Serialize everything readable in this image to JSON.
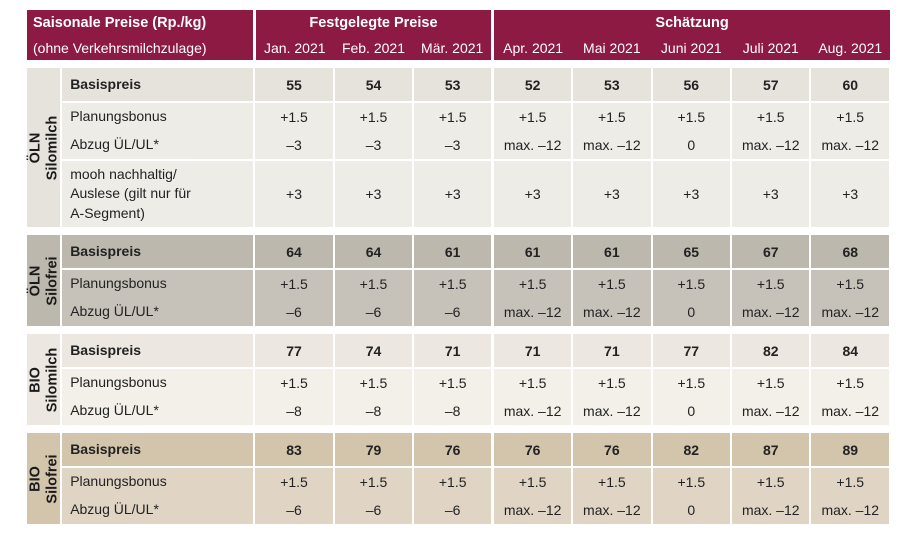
{
  "header": {
    "title": "Saisonale Preise (Rp./kg)",
    "subtitle": "(ohne Verkehrsmilchzulage)",
    "fixed_label": "Festgelegte Preise",
    "estimate_label": "Schätzung",
    "months": [
      "Jan. 2021",
      "Feb. 2021",
      "Mär. 2021",
      "Apr. 2021",
      "Mai 2021",
      "Juni 2021",
      "Juli 2021",
      "Aug. 2021"
    ]
  },
  "sections": [
    {
      "group": [
        "ÖLN",
        "Silomilch"
      ],
      "rows": [
        {
          "label": "Basispreis",
          "values": [
            "55",
            "54",
            "53",
            "52",
            "53",
            "56",
            "57",
            "60"
          ]
        },
        {
          "label": "Planungsbonus",
          "values": [
            "+1.5",
            "+1.5",
            "+1.5",
            "+1.5",
            "+1.5",
            "+1.5",
            "+1.5",
            "+1.5"
          ]
        },
        {
          "label": "Abzug ÜL/UL*",
          "values": [
            "–3",
            "–3",
            "–3",
            "max. –12",
            "max. –12",
            "0",
            "max. –12",
            "max. –12"
          ]
        },
        {
          "label_lines": [
            "mooh nachhaltig/",
            "Auslese (gilt nur für",
            "A-Segment)"
          ],
          "values": [
            "+3",
            "+3",
            "+3",
            "+3",
            "+3",
            "+3",
            "+3",
            "+3"
          ]
        }
      ]
    },
    {
      "group": [
        "ÖLN",
        "Silofrei"
      ],
      "rows": [
        {
          "label": "Basispreis",
          "values": [
            "64",
            "64",
            "61",
            "61",
            "61",
            "65",
            "67",
            "68"
          ]
        },
        {
          "label": "Planungsbonus",
          "values": [
            "+1.5",
            "+1.5",
            "+1.5",
            "+1.5",
            "+1.5",
            "+1.5",
            "+1.5",
            "+1.5"
          ]
        },
        {
          "label": "Abzug ÜL/UL*",
          "values": [
            "–6",
            "–6",
            "–6",
            "max. –12",
            "max. –12",
            "0",
            "max. –12",
            "max. –12"
          ]
        }
      ]
    },
    {
      "group": [
        "BIO",
        "Silomilch"
      ],
      "rows": [
        {
          "label": "Basispreis",
          "values": [
            "77",
            "74",
            "71",
            "71",
            "71",
            "77",
            "82",
            "84"
          ]
        },
        {
          "label": "Planungsbonus",
          "values": [
            "+1.5",
            "+1.5",
            "+1.5",
            "+1.5",
            "+1.5",
            "+1.5",
            "+1.5",
            "+1.5"
          ]
        },
        {
          "label": "Abzug ÜL/UL*",
          "values": [
            "–8",
            "–8",
            "–8",
            "max. –12",
            "max. –12",
            "0",
            "max. –12",
            "max. –12"
          ]
        }
      ]
    },
    {
      "group": [
        "BIO",
        "Silofrei"
      ],
      "rows": [
        {
          "label": "Basispreis",
          "values": [
            "83",
            "79",
            "76",
            "76",
            "76",
            "82",
            "87",
            "89"
          ]
        },
        {
          "label": "Planungsbonus",
          "values": [
            "+1.5",
            "+1.5",
            "+1.5",
            "+1.5",
            "+1.5",
            "+1.5",
            "+1.5",
            "+1.5"
          ]
        },
        {
          "label": "Abzug ÜL/UL*",
          "values": [
            "–6",
            "–6",
            "–6",
            "max. –12",
            "max. –12",
            "0",
            "max. –12",
            "max. –12"
          ]
        }
      ]
    }
  ]
}
